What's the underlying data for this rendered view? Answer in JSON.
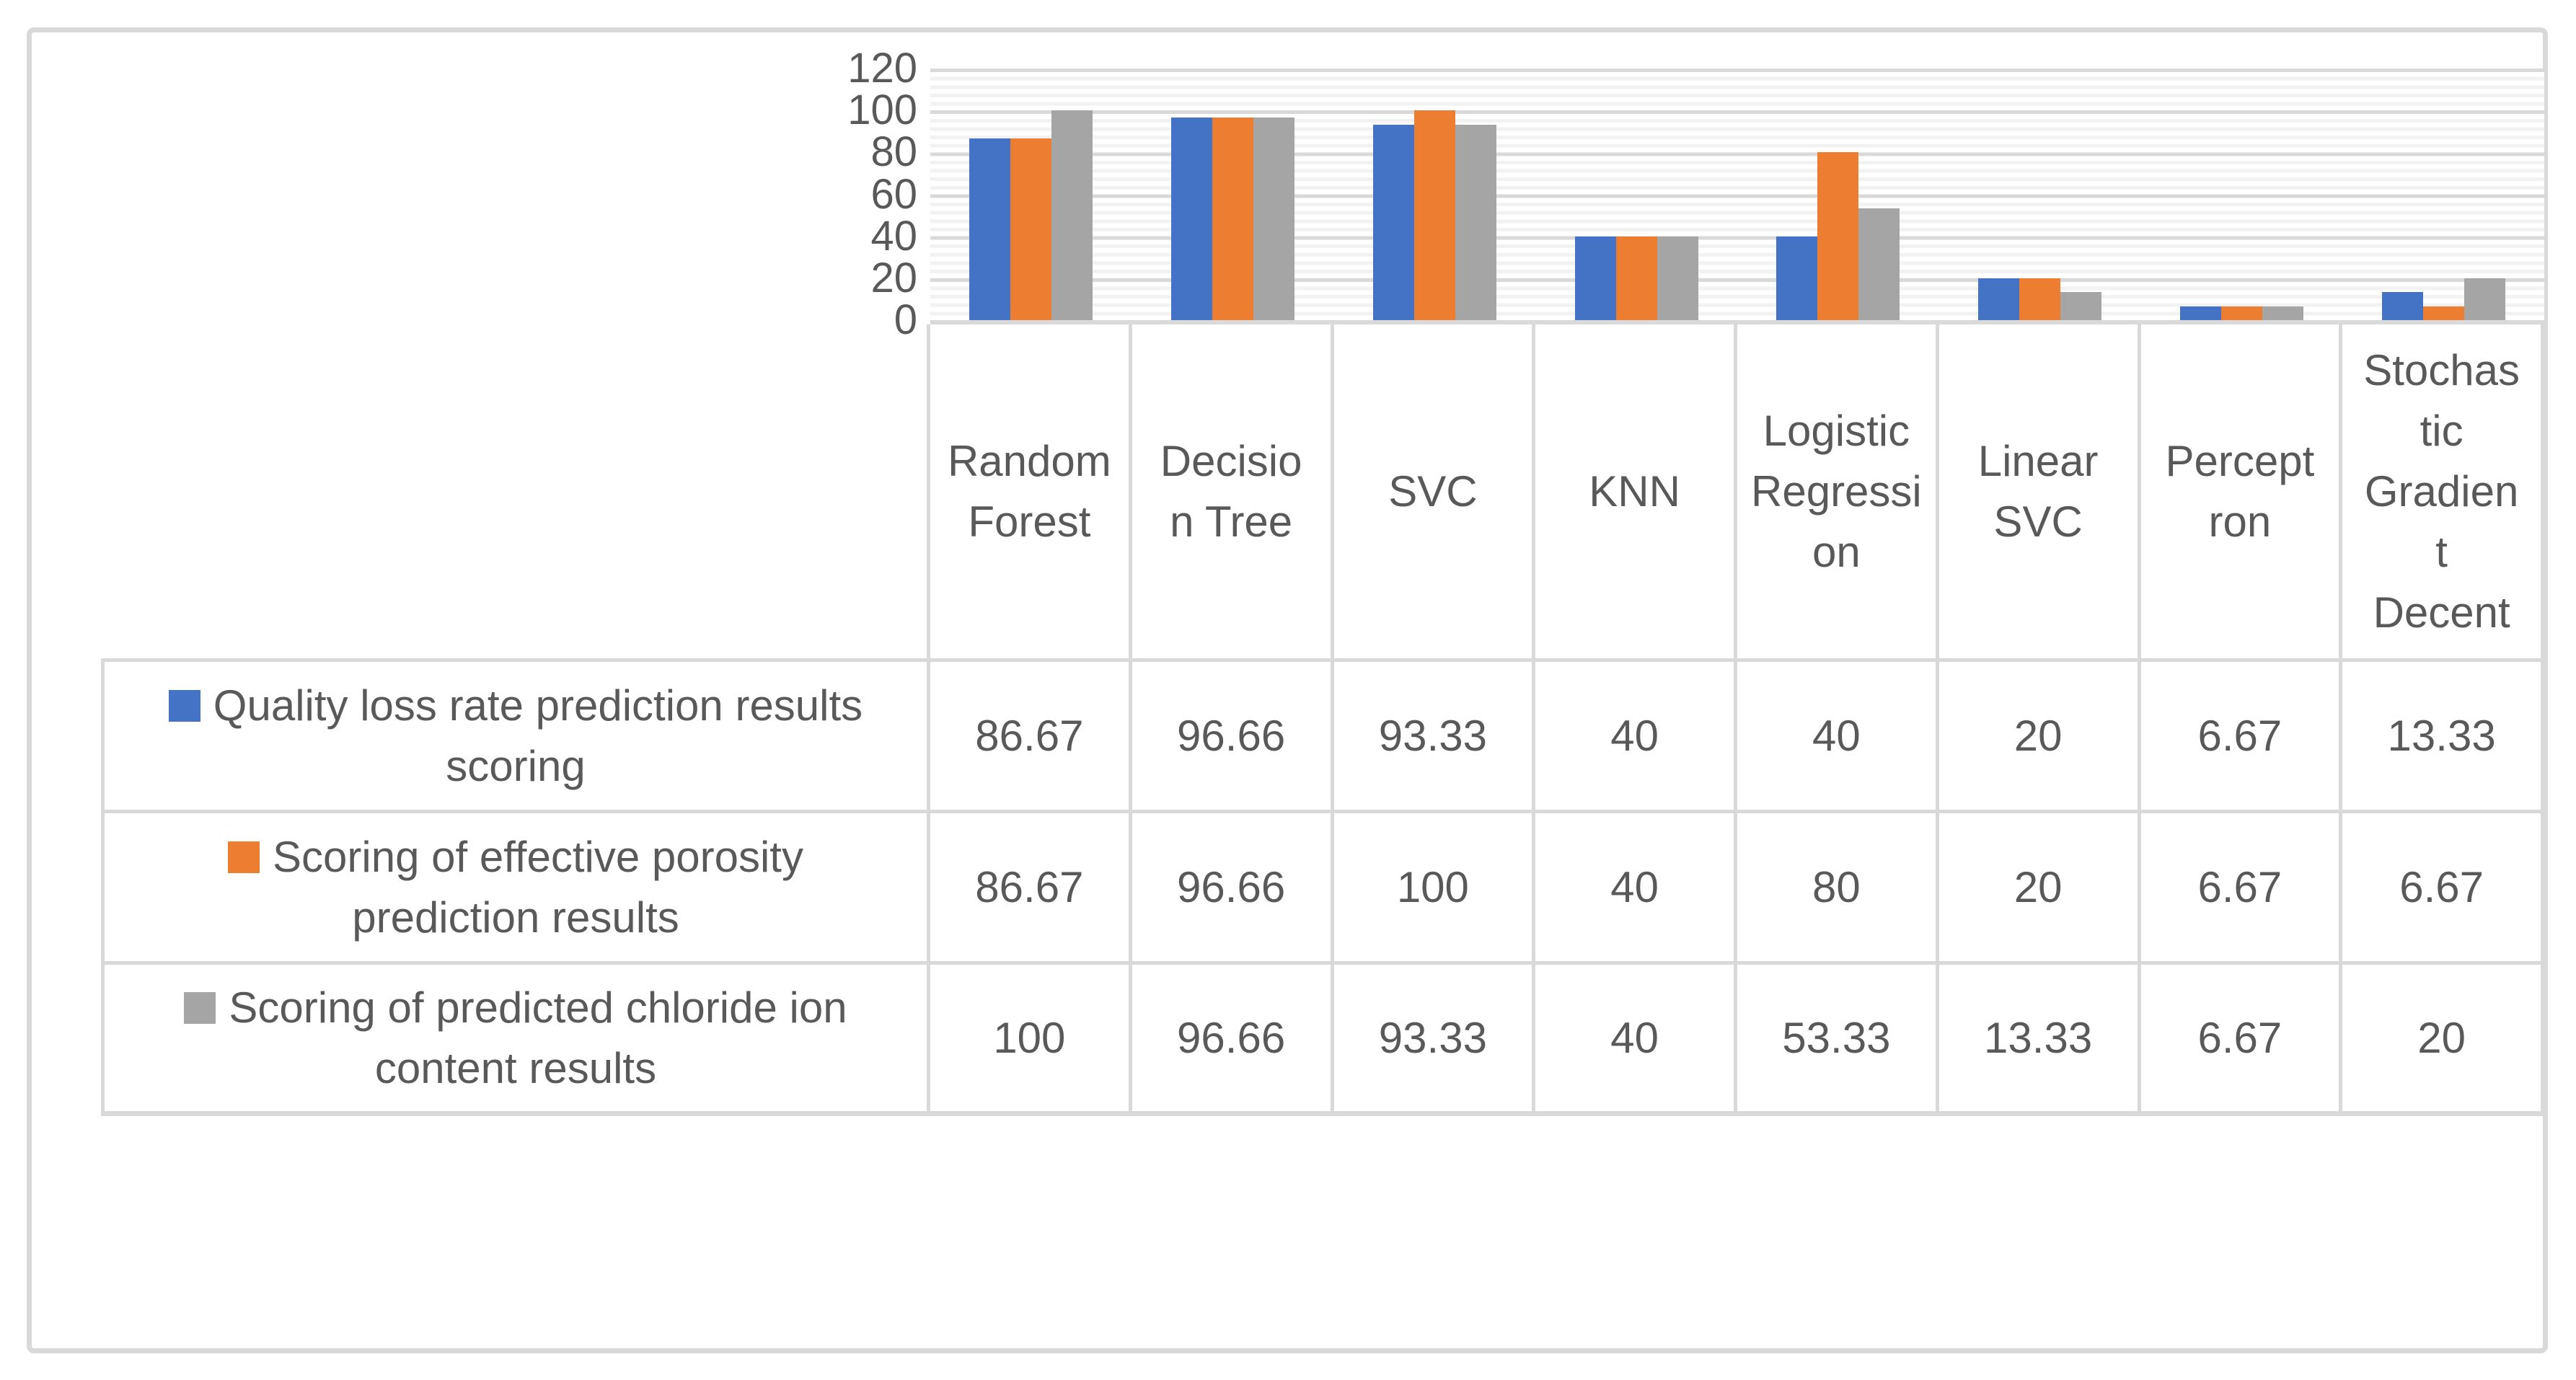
{
  "chart_data": {
    "type": "bar",
    "title": "",
    "xlabel": "",
    "ylabel": "",
    "categories": [
      "Random Forest",
      "Decision Tree",
      "SVC",
      "KNN",
      "Logistic Regression",
      "Linear SVC",
      "Perceptron",
      "Stochastic Gradient Decent"
    ],
    "categories_display": [
      "Random\nForest",
      "Decisio\nn Tree",
      "SVC",
      "KNN",
      "Logistic\nRegressi\non",
      "Linear\nSVC",
      "Percept\nron",
      "Stochas\ntic\nGradien\nt\nDecent"
    ],
    "series": [
      {
        "name": "Quality loss rate prediction results scoring",
        "name_display": "Quality loss rate prediction results\nscoring",
        "color": "#4472C4",
        "values": [
          86.67,
          96.66,
          93.33,
          40,
          40,
          20,
          6.67,
          13.33
        ]
      },
      {
        "name": "Scoring of effective porosity prediction results",
        "name_display": "Scoring of effective porosity\nprediction results",
        "color": "#ED7D31",
        "values": [
          86.67,
          96.66,
          100,
          40,
          80,
          20,
          6.67,
          6.67
        ]
      },
      {
        "name": "Scoring of predicted chloride ion content results",
        "name_display": "Scoring of predicted chloride ion\ncontent results",
        "color": "#A5A5A5",
        "values": [
          100,
          96.66,
          93.33,
          40,
          53.33,
          13.33,
          6.67,
          20
        ]
      }
    ],
    "ylim": [
      0,
      120
    ],
    "y_ticks": [
      0,
      20,
      40,
      60,
      80,
      100,
      120
    ],
    "y_major_unit": 20,
    "y_minor_unit": 4,
    "grid": {
      "horizontal_major": true,
      "horizontal_minor": true,
      "vertical": false
    },
    "legend_position": "data-table-left-column"
  },
  "colors": {
    "series_blue": "#4472C4",
    "series_orange": "#ED7D31",
    "series_gray": "#A5A5A5",
    "grid_major": "#D9D9D9",
    "grid_minor": "#F2F2F2",
    "table_border": "#D9D9D9",
    "text": "#595959",
    "panel_background": "#FFFFFF"
  }
}
